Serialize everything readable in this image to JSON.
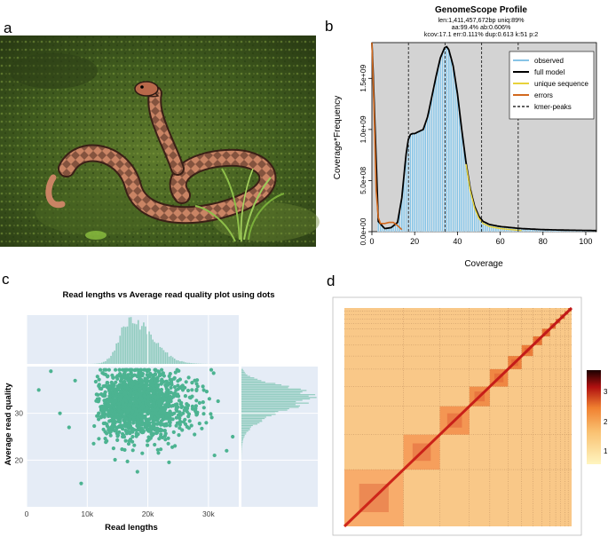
{
  "panels": {
    "a": {
      "letter": "a"
    },
    "b": {
      "letter": "b"
    },
    "c": {
      "letter": "c"
    },
    "d": {
      "letter": "d"
    }
  },
  "genomescope": {
    "title": "GenomeScope Profile",
    "stats_line1": "len:1,411,457,672bp uniq:89%",
    "stats_line2": "aa:99.4% ab:0.606%",
    "stats_line3": "kcov:17.1 err:0.111%  dup:0.613  k:51 p:2",
    "xlabel": "Coverage",
    "ylabel": "Coverage*Frequency",
    "xticks": [
      "0",
      "20",
      "40",
      "60",
      "80",
      "100"
    ],
    "yticks": [
      "0.0e+00",
      "5.0e+08",
      "1.0e+09",
      "1.5e+09"
    ],
    "legend": [
      "observed",
      "full model",
      "unique sequence",
      "errors",
      "kmer-peaks"
    ],
    "colors": {
      "bg": "#d3d3d3",
      "observed": "#87c4e6",
      "model": "#000000",
      "unique": "#e8d23a",
      "errors": "#d2691e"
    }
  },
  "readplot": {
    "title": "Read lengths vs Average read quality plot using dots",
    "xlabel": "Read lengths",
    "ylabel": "Average read quality",
    "xticks": [
      "0",
      "10k",
      "20k",
      "30k"
    ],
    "yticks": [
      "20",
      "30"
    ],
    "colors": {
      "bg": "#e5ecf6",
      "dots": "#4cb391"
    }
  },
  "hic": {
    "colorbar_ticks": [
      "1",
      "2",
      "3"
    ],
    "colors": {
      "low": "#fff5c0",
      "mid": "#f08030",
      "high": "#b01010",
      "top": "#1a0000"
    }
  },
  "chart_data": [
    {
      "type": "line",
      "title": "GenomeScope Profile",
      "xlabel": "Coverage",
      "ylabel": "Coverage*Frequency",
      "xlim": [
        0,
        105
      ],
      "ylim": [
        0,
        1850000000.0
      ],
      "peaks_x": [
        17.1,
        34.2,
        51.3,
        68.4
      ],
      "series": [
        {
          "name": "observed",
          "x": [
            0,
            3,
            6,
            9,
            12,
            14,
            16,
            17,
            18,
            19,
            20,
            22,
            24,
            26,
            28,
            30,
            32,
            34,
            35,
            36,
            38,
            40,
            42,
            44,
            46,
            48,
            50,
            52,
            55,
            60,
            65,
            70,
            80,
            90,
            100,
            105
          ],
          "y": [
            1900000000.0,
            100000000.0,
            30000000.0,
            40000000.0,
            90000000.0,
            330000000.0,
            760000000.0,
            900000000.0,
            950000000.0,
            960000000.0,
            960000000.0,
            980000000.0,
            1000000000.0,
            1120000000.0,
            1320000000.0,
            1520000000.0,
            1700000000.0,
            1800000000.0,
            1810000000.0,
            1780000000.0,
            1620000000.0,
            1350000000.0,
            1000000000.0,
            680000000.0,
            420000000.0,
            250000000.0,
            150000000.0,
            100000000.0,
            70000000.0,
            50000000.0,
            40000000.0,
            30000000.0,
            20000000.0,
            15000000.0,
            12000000.0,
            10000000.0
          ]
        },
        {
          "name": "full model",
          "x": [
            0,
            3,
            6,
            9,
            12,
            14,
            16,
            17,
            18,
            19,
            20,
            22,
            24,
            26,
            28,
            30,
            32,
            34,
            35,
            36,
            38,
            40,
            42,
            44,
            46,
            48,
            50,
            52,
            55,
            60,
            65,
            70,
            80,
            90,
            100,
            105
          ],
          "y": [
            1900000000.0,
            100000000.0,
            30000000.0,
            40000000.0,
            90000000.0,
            330000000.0,
            760000000.0,
            900000000.0,
            950000000.0,
            960000000.0,
            960000000.0,
            980000000.0,
            1000000000.0,
            1120000000.0,
            1320000000.0,
            1520000000.0,
            1700000000.0,
            1800000000.0,
            1810000000.0,
            1780000000.0,
            1620000000.0,
            1350000000.0,
            1000000000.0,
            680000000.0,
            420000000.0,
            250000000.0,
            150000000.0,
            100000000.0,
            70000000.0,
            50000000.0,
            40000000.0,
            30000000.0,
            20000000.0,
            15000000.0,
            12000000.0,
            10000000.0
          ]
        },
        {
          "name": "unique sequence",
          "x": [
            44,
            46,
            48,
            50,
            52,
            55,
            60,
            65,
            70
          ],
          "y": [
            660000000.0,
            400000000.0,
            230000000.0,
            130000000.0,
            80000000.0,
            50000000.0,
            30000000.0,
            20000000.0,
            10000000.0
          ]
        },
        {
          "name": "errors",
          "x": [
            0,
            1,
            2,
            3,
            4,
            6,
            8,
            10,
            12,
            14
          ],
          "y": [
            1900000000.0,
            1200000000.0,
            400000000.0,
            140000000.0,
            80000000.0,
            80000000.0,
            90000000.0,
            90000000.0,
            60000000.0,
            20000000.0
          ]
        }
      ]
    },
    {
      "type": "scatter",
      "title": "Read lengths vs Average read quality plot using dots",
      "xlabel": "Read lengths",
      "ylabel": "Average read quality",
      "xlim": [
        0,
        35000
      ],
      "ylim": [
        10,
        40
      ],
      "x_marginal_peak": 17000,
      "y_marginal_peak": 34,
      "outliers": [
        {
          "x": 2000,
          "y": 35
        },
        {
          "x": 4000,
          "y": 39
        },
        {
          "x": 5500,
          "y": 30
        },
        {
          "x": 7000,
          "y": 27
        },
        {
          "x": 9000,
          "y": 15
        },
        {
          "x": 8000,
          "y": 37
        },
        {
          "x": 34000,
          "y": 25
        },
        {
          "x": 33000,
          "y": 22
        },
        {
          "x": 31000,
          "y": 21
        }
      ]
    },
    {
      "type": "heatmap",
      "title": "",
      "colorbar": {
        "min": 0.5,
        "max": 3.5,
        "ticks": [
          1,
          2,
          3
        ]
      },
      "block_boundaries_frac": [
        0,
        0.26,
        0.42,
        0.55,
        0.64,
        0.72,
        0.78,
        0.83,
        0.87,
        0.905,
        0.93,
        0.95,
        0.97,
        0.985,
        1
      ]
    }
  ]
}
